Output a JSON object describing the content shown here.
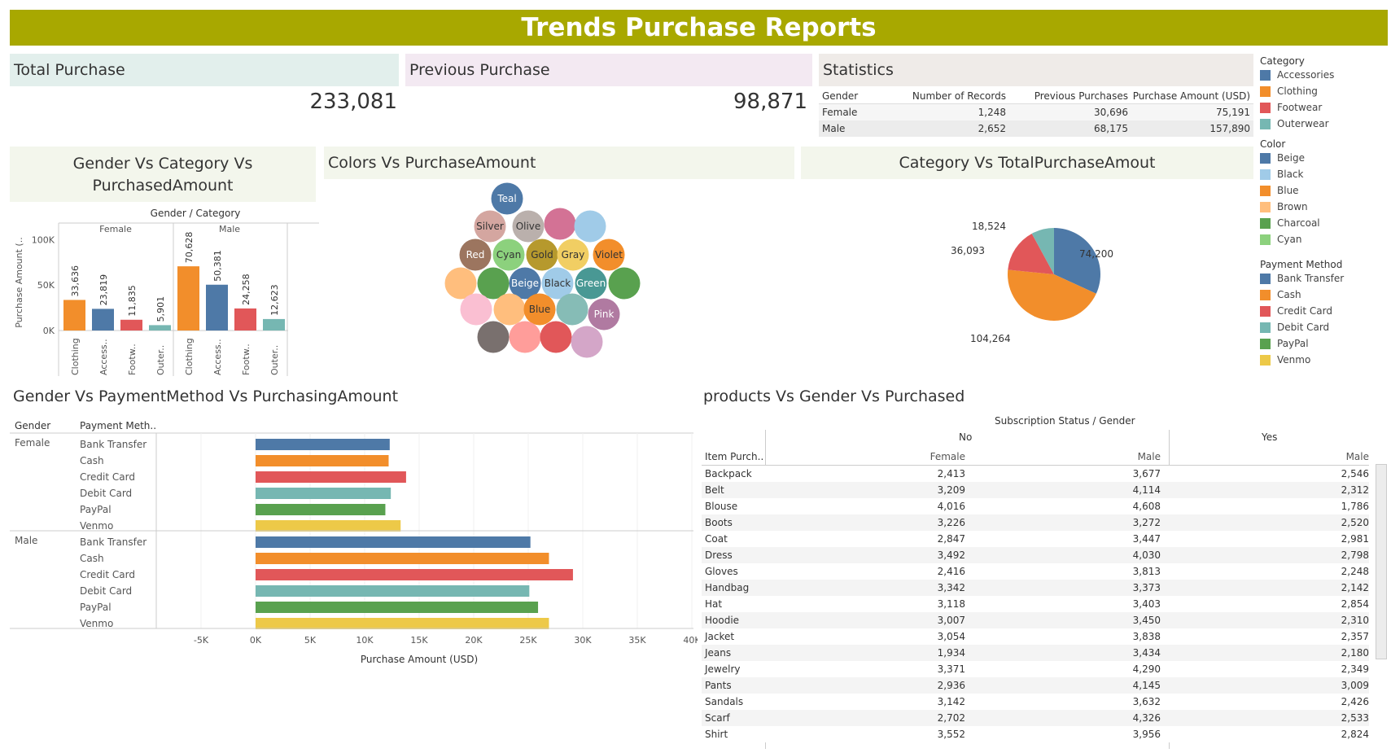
{
  "title": "Trends Purchase Reports",
  "kpis": {
    "total_label": "Total Purchase",
    "total_value": "233,081",
    "prev_label": "Previous Purchase",
    "prev_value": "98,871"
  },
  "statistics": {
    "title": "Statistics",
    "headers": [
      "Gender",
      "Number of Records",
      "Previous Purchases",
      "Purchase Amount (USD)"
    ],
    "rows": [
      [
        "Female",
        "1,248",
        "30,696",
        "75,191"
      ],
      [
        "Male",
        "2,652",
        "68,175",
        "157,890"
      ]
    ]
  },
  "legends": {
    "category": {
      "title": "Category",
      "items": [
        {
          "label": "Accessories",
          "color": "#4e79a7"
        },
        {
          "label": "Clothing",
          "color": "#f28e2b"
        },
        {
          "label": "Footwear",
          "color": "#e15759"
        },
        {
          "label": "Outerwear",
          "color": "#76b7b2"
        }
      ]
    },
    "color": {
      "title": "Color",
      "items": [
        {
          "label": "Beige",
          "color": "#4e79a7"
        },
        {
          "label": "Black",
          "color": "#a0cbe8"
        },
        {
          "label": "Blue",
          "color": "#f28e2b"
        },
        {
          "label": "Brown",
          "color": "#ffbe7d"
        },
        {
          "label": "Charcoal",
          "color": "#59a14f"
        },
        {
          "label": "Cyan",
          "color": "#8cd17d"
        }
      ]
    },
    "payment": {
      "title": "Payment Method",
      "items": [
        {
          "label": "Bank Transfer",
          "color": "#4e79a7"
        },
        {
          "label": "Cash",
          "color": "#f28e2b"
        },
        {
          "label": "Credit Card",
          "color": "#e15759"
        },
        {
          "label": "Debit Card",
          "color": "#76b7b2"
        },
        {
          "label": "PayPal",
          "color": "#59a14f"
        },
        {
          "label": "Venmo",
          "color": "#edc948"
        }
      ]
    }
  },
  "chart_data": [
    {
      "type": "bar",
      "title": "Gender Vs Category Vs PurchasedAmount",
      "header": "Gender / Category",
      "ylabel": "Purchase Amount (..",
      "ylim": [
        0,
        80000
      ],
      "yticks": [
        "0K",
        "50K",
        "100K"
      ],
      "groups": [
        {
          "name": "Female",
          "bars": [
            {
              "label": "Clothing",
              "value": 33636,
              "value_label": "33,636",
              "color": "#f28e2b"
            },
            {
              "label": "Access..",
              "value": 23819,
              "value_label": "23,819",
              "color": "#4e79a7"
            },
            {
              "label": "Footw..",
              "value": 11835,
              "value_label": "11,835",
              "color": "#e15759"
            },
            {
              "label": "Outer..",
              "value": 5901,
              "value_label": "5,901",
              "color": "#76b7b2"
            }
          ]
        },
        {
          "name": "Male",
          "bars": [
            {
              "label": "Clothing",
              "value": 70628,
              "value_label": "70,628",
              "color": "#f28e2b"
            },
            {
              "label": "Access..",
              "value": 50381,
              "value_label": "50,381",
              "color": "#4e79a7"
            },
            {
              "label": "Footw..",
              "value": 24258,
              "value_label": "24,258",
              "color": "#e15759"
            },
            {
              "label": "Outer..",
              "value": 12623,
              "value_label": "12,623",
              "color": "#76b7b2"
            }
          ]
        }
      ]
    },
    {
      "type": "bubble",
      "title": "Colors Vs PurchaseAmount",
      "bubbles": [
        {
          "label": "Teal",
          "color": "#4e79a7",
          "text": "#fff"
        },
        {
          "label": "Silver",
          "color": "#d4a6a0",
          "text": "#333"
        },
        {
          "label": "Olive",
          "color": "#bab0ac",
          "text": "#333"
        },
        {
          "label": "",
          "color": "#d37295",
          "text": "#fff"
        },
        {
          "label": "",
          "color": "#a0cbe8",
          "text": "#fff"
        },
        {
          "label": "Red",
          "color": "#9c755f",
          "text": "#fff"
        },
        {
          "label": "Cyan",
          "color": "#8cd17d",
          "text": "#333"
        },
        {
          "label": "Gold",
          "color": "#b6992d",
          "text": "#333"
        },
        {
          "label": "Gray",
          "color": "#f1ce63",
          "text": "#333"
        },
        {
          "label": "Violet",
          "color": "#f28e2b",
          "text": "#333"
        },
        {
          "label": "",
          "color": "#ffbe7d",
          "text": "#fff"
        },
        {
          "label": "",
          "color": "#59a14f",
          "text": "#fff"
        },
        {
          "label": "Beige",
          "color": "#4e79a7",
          "text": "#fff"
        },
        {
          "label": "Black",
          "color": "#a0cbe8",
          "text": "#333"
        },
        {
          "label": "Green",
          "color": "#499894",
          "text": "#fff"
        },
        {
          "label": "",
          "color": "#59a14f",
          "text": "#fff"
        },
        {
          "label": "",
          "color": "#fabfd2",
          "text": "#fff"
        },
        {
          "label": "",
          "color": "#ffbe7d",
          "text": "#fff"
        },
        {
          "label": "Blue",
          "color": "#f28e2b",
          "text": "#333"
        },
        {
          "label": "",
          "color": "#86bcb6",
          "text": "#fff"
        },
        {
          "label": "Pink",
          "color": "#b07aa1",
          "text": "#fff"
        },
        {
          "label": "",
          "color": "#79706e",
          "text": "#fff"
        },
        {
          "label": "",
          "color": "#ff9d9a",
          "text": "#fff"
        },
        {
          "label": "",
          "color": "#e15759",
          "text": "#fff"
        },
        {
          "label": "",
          "color": "#d4a6c8",
          "text": "#fff"
        }
      ]
    },
    {
      "type": "pie",
      "title": "Category Vs TotalPurchaseAmout",
      "slices": [
        {
          "label": "Accessories",
          "value": 74200,
          "value_label": "74,200",
          "color": "#4e79a7"
        },
        {
          "label": "Clothing",
          "value": 104264,
          "value_label": "104,264",
          "color": "#f28e2b"
        },
        {
          "label": "Footwear",
          "value": 36093,
          "value_label": "36,093",
          "color": "#e15759"
        },
        {
          "label": "Outerwear",
          "value": 18524,
          "value_label": "18,524",
          "color": "#76b7b2"
        }
      ]
    },
    {
      "type": "bar",
      "orientation": "horizontal",
      "title": "Gender Vs PaymentMethod Vs PurchasingAmount",
      "col_headers": [
        "Gender",
        "Payment Meth.."
      ],
      "xlabel": "Purchase Amount (USD)",
      "xlim": [
        -5000,
        40000
      ],
      "xticks": [
        "-5K",
        "0K",
        "5K",
        "10K",
        "15K",
        "20K",
        "25K",
        "30K",
        "35K",
        "40K"
      ],
      "groups": [
        {
          "name": "Female",
          "bars": [
            {
              "label": "Bank Transfer",
              "value": 12300,
              "color": "#4e79a7"
            },
            {
              "label": "Cash",
              "value": 12200,
              "color": "#f28e2b"
            },
            {
              "label": "Credit Card",
              "value": 13800,
              "color": "#e15759"
            },
            {
              "label": "Debit Card",
              "value": 12400,
              "color": "#76b7b2"
            },
            {
              "label": "PayPal",
              "value": 11900,
              "color": "#59a14f"
            },
            {
              "label": "Venmo",
              "value": 13300,
              "color": "#edc948"
            }
          ]
        },
        {
          "name": "Male",
          "bars": [
            {
              "label": "Bank Transfer",
              "value": 25200,
              "color": "#4e79a7"
            },
            {
              "label": "Cash",
              "value": 26900,
              "color": "#f28e2b"
            },
            {
              "label": "Credit Card",
              "value": 29100,
              "color": "#e15759"
            },
            {
              "label": "Debit Card",
              "value": 25100,
              "color": "#76b7b2"
            },
            {
              "label": "PayPal",
              "value": 25900,
              "color": "#59a14f"
            },
            {
              "label": "Venmo",
              "value": 26900,
              "color": "#edc948"
            }
          ]
        }
      ]
    },
    {
      "type": "table",
      "title": "products Vs Gender Vs Purchased",
      "header": "Subscription Status / Gender",
      "groups": [
        "No",
        "Yes"
      ],
      "columns": [
        "Item Purch..",
        "Female",
        "Male",
        "Male"
      ],
      "rows": [
        [
          "Backpack",
          "2,413",
          "3,677",
          "2,546"
        ],
        [
          "Belt",
          "3,209",
          "4,114",
          "2,312"
        ],
        [
          "Blouse",
          "4,016",
          "4,608",
          "1,786"
        ],
        [
          "Boots",
          "3,226",
          "3,272",
          "2,520"
        ],
        [
          "Coat",
          "2,847",
          "3,447",
          "2,981"
        ],
        [
          "Dress",
          "3,492",
          "4,030",
          "2,798"
        ],
        [
          "Gloves",
          "2,416",
          "3,813",
          "2,248"
        ],
        [
          "Handbag",
          "3,342",
          "3,373",
          "2,142"
        ],
        [
          "Hat",
          "3,118",
          "3,403",
          "2,854"
        ],
        [
          "Hoodie",
          "3,007",
          "3,450",
          "2,310"
        ],
        [
          "Jacket",
          "3,054",
          "3,838",
          "2,357"
        ],
        [
          "Jeans",
          "1,934",
          "3,434",
          "2,180"
        ],
        [
          "Jewelry",
          "3,371",
          "4,290",
          "2,349"
        ],
        [
          "Pants",
          "2,936",
          "4,145",
          "3,009"
        ],
        [
          "Sandals",
          "3,142",
          "3,632",
          "2,426"
        ],
        [
          "Scarf",
          "2,702",
          "4,326",
          "2,533"
        ],
        [
          "Shirt",
          "3,552",
          "3,956",
          "2,824"
        ]
      ]
    }
  ]
}
